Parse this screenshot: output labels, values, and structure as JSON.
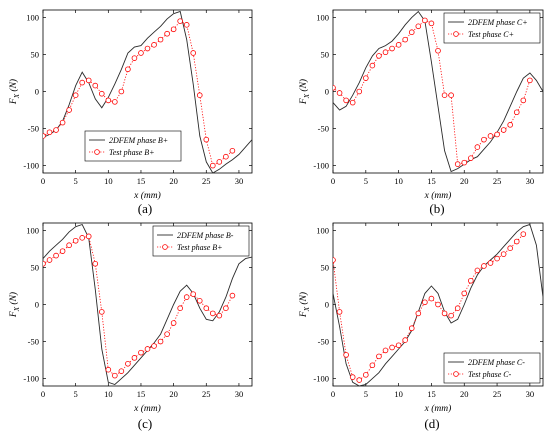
{
  "figure": {
    "background": "#ffffff"
  },
  "style": {
    "sim_color": "#2b2b2b",
    "test_color": "#ff0000"
  },
  "chart_data": [
    {
      "type": "line",
      "caption": "(a)",
      "xlabel": "x (mm)",
      "ylabel": "F_X (N)",
      "ylabel_main": "F",
      "ylabel_sub": "X",
      "ylabel_unit": "(N)",
      "xlim": [
        0,
        32
      ],
      "ylim": [
        -110,
        110
      ],
      "xticks": [
        0,
        5,
        10,
        15,
        20,
        25,
        30
      ],
      "yticks": [
        -100,
        -50,
        0,
        50,
        100
      ],
      "legend_position": "bottom-left",
      "series": [
        {
          "name": "2DFEM phase B+",
          "style": "solid",
          "x": [
            0,
            1,
            2,
            3,
            4,
            5,
            6,
            7,
            8,
            9,
            10,
            11,
            12,
            13,
            14,
            15,
            16,
            17,
            18,
            19,
            20,
            21,
            22,
            23,
            24,
            25,
            26,
            27,
            28,
            29,
            30,
            31,
            32
          ],
          "y": [
            -62,
            -58,
            -52,
            -40,
            -18,
            8,
            26,
            12,
            -10,
            -22,
            -8,
            10,
            30,
            52,
            60,
            62,
            72,
            80,
            88,
            98,
            105,
            108,
            70,
            10,
            -60,
            -95,
            -110,
            -105,
            -98,
            -92,
            -85,
            -75,
            -65
          ]
        },
        {
          "name": "Test phase B+",
          "style": "dotted-markers",
          "x": [
            0,
            1,
            2,
            3,
            4,
            5,
            6,
            7,
            8,
            9,
            10,
            11,
            12,
            13,
            14,
            15,
            16,
            17,
            18,
            19,
            20,
            21,
            22,
            23,
            24,
            25,
            26,
            27,
            28,
            29
          ],
          "y": [
            -60,
            -55,
            -52,
            -42,
            -25,
            -5,
            12,
            15,
            8,
            -3,
            -12,
            -14,
            0,
            30,
            45,
            52,
            58,
            63,
            70,
            78,
            84,
            95,
            90,
            52,
            -5,
            -65,
            -100,
            -95,
            -88,
            -80
          ]
        }
      ]
    },
    {
      "type": "line",
      "caption": "(b)",
      "xlabel": "x (mm)",
      "ylabel": "F_X (N)",
      "ylabel_main": "F",
      "ylabel_sub": "X",
      "ylabel_unit": "(N)",
      "xlim": [
        0,
        32
      ],
      "ylim": [
        -110,
        110
      ],
      "xticks": [
        0,
        5,
        10,
        15,
        20,
        25,
        30
      ],
      "yticks": [
        -100,
        -50,
        0,
        50,
        100
      ],
      "legend_position": "top-right",
      "series": [
        {
          "name": "2DFEM phase C+",
          "style": "solid",
          "x": [
            0,
            1,
            2,
            3,
            4,
            5,
            6,
            7,
            8,
            9,
            10,
            11,
            12,
            13,
            14,
            15,
            16,
            17,
            18,
            19,
            20,
            21,
            22,
            23,
            24,
            25,
            26,
            27,
            28,
            29,
            30,
            31,
            32
          ],
          "y": [
            -15,
            -25,
            -20,
            -5,
            12,
            32,
            48,
            58,
            62,
            68,
            78,
            90,
            100,
            108,
            95,
            40,
            -20,
            -80,
            -108,
            -104,
            -98,
            -92,
            -88,
            -78,
            -68,
            -55,
            -40,
            -20,
            0,
            18,
            25,
            15,
            0
          ]
        },
        {
          "name": "Test phase C+",
          "style": "dotted-markers",
          "x": [
            0,
            1,
            2,
            3,
            4,
            5,
            6,
            7,
            8,
            9,
            10,
            11,
            12,
            13,
            14,
            15,
            16,
            17,
            18,
            19,
            20,
            21,
            22,
            23,
            24,
            25,
            26,
            27,
            28,
            29,
            30
          ],
          "y": [
            5,
            -2,
            -12,
            -15,
            0,
            18,
            35,
            48,
            53,
            58,
            63,
            70,
            80,
            88,
            96,
            92,
            55,
            -5,
            -5,
            -98,
            -96,
            -90,
            -75,
            -65,
            -60,
            -58,
            -52,
            -45,
            -28,
            -12,
            15
          ]
        }
      ]
    },
    {
      "type": "line",
      "caption": "(c)",
      "xlabel": "x (mm)",
      "ylabel": "F_X (N)",
      "ylabel_main": "F",
      "ylabel_sub": "X",
      "ylabel_unit": "(N)",
      "xlim": [
        0,
        32
      ],
      "ylim": [
        -110,
        110
      ],
      "xticks": [
        0,
        5,
        10,
        15,
        20,
        25,
        30
      ],
      "yticks": [
        -100,
        -50,
        0,
        50,
        100
      ],
      "legend_position": "top-right",
      "series": [
        {
          "name": "2DFEM phase B-",
          "style": "solid",
          "x": [
            0,
            1,
            2,
            3,
            4,
            5,
            6,
            7,
            8,
            9,
            10,
            11,
            12,
            13,
            14,
            15,
            16,
            17,
            18,
            19,
            20,
            21,
            22,
            23,
            24,
            25,
            26,
            27,
            28,
            29,
            30,
            31,
            32
          ],
          "y": [
            62,
            72,
            80,
            88,
            98,
            105,
            108,
            90,
            20,
            -60,
            -105,
            -108,
            -100,
            -92,
            -82,
            -72,
            -62,
            -52,
            -40,
            -20,
            0,
            18,
            26,
            15,
            -5,
            -20,
            -22,
            -10,
            10,
            35,
            55,
            62,
            64
          ]
        },
        {
          "name": "Test phase B+",
          "style": "dotted-markers",
          "x": [
            0,
            1,
            2,
            3,
            4,
            5,
            6,
            7,
            8,
            9,
            10,
            11,
            12,
            13,
            14,
            15,
            16,
            17,
            18,
            19,
            20,
            21,
            22,
            23,
            24,
            25,
            26,
            27,
            28,
            29
          ],
          "y": [
            55,
            60,
            66,
            72,
            80,
            86,
            90,
            92,
            55,
            -10,
            -88,
            -96,
            -90,
            -80,
            -72,
            -65,
            -60,
            -56,
            -50,
            -40,
            -25,
            -5,
            10,
            14,
            5,
            -5,
            -12,
            -15,
            -5,
            12
          ]
        }
      ]
    },
    {
      "type": "line",
      "caption": "(d)",
      "xlabel": "x (mm)",
      "ylabel": "F_X (N)",
      "ylabel_main": "F",
      "ylabel_sub": "X",
      "ylabel_unit": "(N)",
      "xlim": [
        0,
        32
      ],
      "ylim": [
        -110,
        110
      ],
      "xticks": [
        0,
        5,
        10,
        15,
        20,
        25,
        30
      ],
      "yticks": [
        -100,
        -50,
        0,
        50,
        100
      ],
      "legend_position": "bottom-right",
      "series": [
        {
          "name": "2DFEM phase C-",
          "style": "solid",
          "x": [
            0,
            1,
            2,
            3,
            4,
            5,
            6,
            7,
            8,
            9,
            10,
            11,
            12,
            13,
            14,
            15,
            16,
            17,
            18,
            19,
            20,
            21,
            22,
            23,
            24,
            25,
            26,
            27,
            28,
            29,
            30,
            31,
            32
          ],
          "y": [
            15,
            -30,
            -80,
            -105,
            -110,
            -108,
            -100,
            -92,
            -80,
            -70,
            -60,
            -50,
            -35,
            -10,
            15,
            25,
            15,
            -10,
            -25,
            -20,
            0,
            22,
            40,
            52,
            60,
            68,
            78,
            88,
            98,
            105,
            108,
            80,
            10
          ]
        },
        {
          "name": "Test phase C-",
          "style": "dotted-markers",
          "x": [
            0,
            1,
            2,
            3,
            4,
            5,
            6,
            7,
            8,
            9,
            10,
            11,
            12,
            13,
            14,
            15,
            16,
            17,
            18,
            19,
            20,
            21,
            22,
            23,
            24,
            25,
            26,
            27,
            28,
            29
          ],
          "y": [
            60,
            -10,
            -68,
            -98,
            -102,
            -95,
            -82,
            -70,
            -62,
            -58,
            -55,
            -48,
            -32,
            -12,
            3,
            8,
            0,
            -12,
            -15,
            -5,
            15,
            32,
            46,
            52,
            56,
            62,
            68,
            76,
            85,
            95
          ]
        }
      ]
    }
  ]
}
